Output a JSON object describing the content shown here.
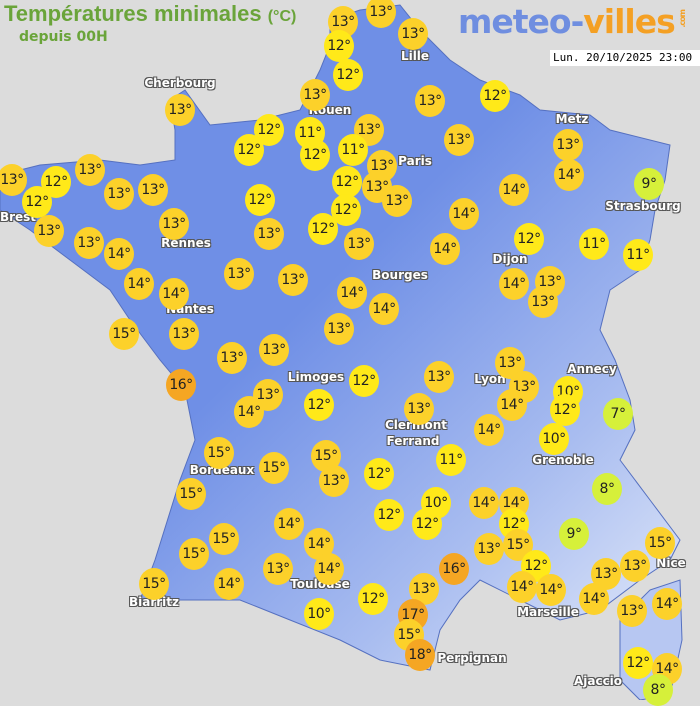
{
  "header": {
    "title": "Températures minimales",
    "unit": "(°C)",
    "subtitle": "depuis 00H",
    "logo_text_a": "meteo-",
    "logo_text_b": "villes",
    "logo_com": ".com",
    "datetime": "Lun. 20/10/2025 23:00"
  },
  "colors": {
    "land": "#6f8fe6",
    "land_light": "#dfe6f8",
    "background": "#dcdcdc",
    "cold": "#d6f03a",
    "mild": "#ffe919",
    "warm": "#fcd12a",
    "hot": "#f5a623",
    "title": "#6aa43a"
  },
  "cities": [
    "Cherbourg",
    "Lille",
    "Rouen",
    "Paris",
    "Metz",
    "Strasbourg",
    "Brest",
    "Rennes",
    "Dijon",
    "Bourges",
    "Nantes",
    "Limoges",
    "Lyon",
    "Annecy",
    "Clermont",
    "Ferrand",
    "Grenoble",
    "Bordeaux",
    "Nice",
    "Toulouse",
    "Marseille",
    "Biarritz",
    "Perpignan",
    "Ajaccio"
  ],
  "temperatures": [
    13,
    13,
    12,
    13,
    12,
    13,
    12,
    13,
    13,
    12,
    11,
    13,
    12,
    12,
    11,
    13,
    13,
    13,
    14,
    13,
    12,
    12,
    13,
    13,
    13,
    13,
    12,
    12,
    12,
    13,
    14,
    9,
    13,
    13,
    13,
    14,
    13,
    12,
    13,
    14,
    12,
    11,
    11,
    14,
    14,
    14,
    13,
    13,
    14,
    14,
    14,
    13,
    13,
    15,
    13,
    13,
    13,
    13,
    12,
    13,
    13,
    13,
    10,
    14,
    12,
    7,
    16,
    13,
    14,
    12,
    13,
    14,
    10,
    15,
    15,
    15,
    13,
    12,
    11,
    15,
    8,
    10,
    14,
    14,
    12,
    12,
    12,
    14,
    15,
    14,
    9,
    15,
    13,
    15,
    15,
    13,
    12,
    16,
    13,
    15,
    14,
    13,
    14,
    14,
    14,
    13,
    12,
    14,
    13,
    14,
    10,
    17,
    15,
    18,
    12,
    14,
    8
  ],
  "degree_suffix": "°"
}
